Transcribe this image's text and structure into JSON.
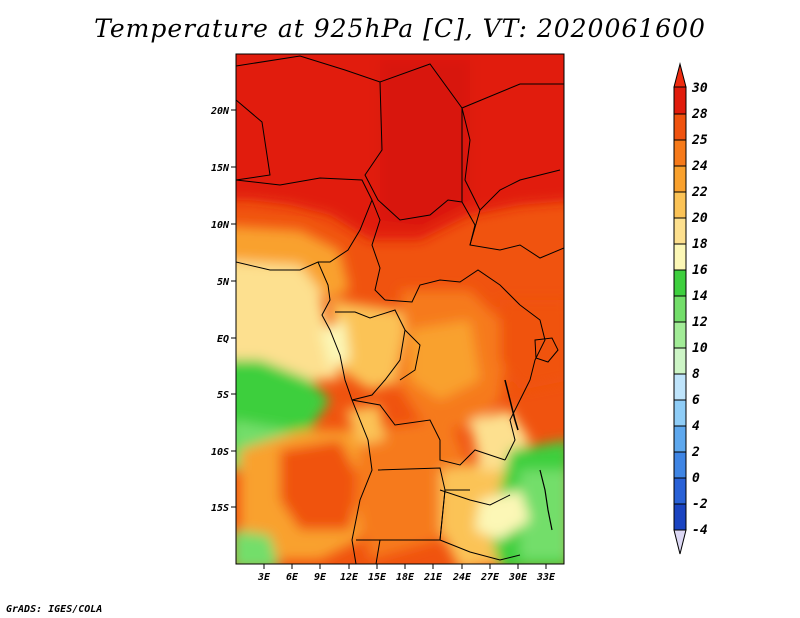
{
  "title": "Temperature at 925hPa [C], VT: 2020061600",
  "footer": "GrADS: IGES/COLA",
  "map": {
    "lat_labels": [
      "20N",
      "15N",
      "10N",
      "5N",
      "EQ",
      "5S",
      "10S",
      "15S"
    ],
    "lon_labels": [
      "3E",
      "6E",
      "9E",
      "12E",
      "15E",
      "18E",
      "21E",
      "24E",
      "27E",
      "30E",
      "33E"
    ]
  },
  "colorbar": {
    "levels": [
      "30",
      "28",
      "25",
      "24",
      "22",
      "20",
      "18",
      "16",
      "14",
      "12",
      "10",
      "8",
      "6",
      "4",
      "2",
      "0",
      "-2",
      "-4"
    ],
    "colors": {
      "above_30": "#ee2c10",
      "28_30": "#e11c0c",
      "25_28": "#f0530f",
      "24_25": "#f67a1a",
      "22_24": "#f9a12e",
      "20_22": "#fbc357",
      "18_20": "#fde08f",
      "16_18": "#fcf7b6",
      "14_16": "#3ecf3e",
      "12_14": "#73de6a",
      "10_12": "#a2ec97",
      "8_10": "#cdf5c6",
      "6_8": "#bfe4fb",
      "4_6": "#8fcdf7",
      "2_4": "#5ea8ee",
      "0_2": "#3f85e4",
      "-2_0": "#2961d6",
      "-4_-2": "#1a44c1",
      "below_-4": "#10127a",
      "under_arrow": "#dcd8f4"
    }
  }
}
